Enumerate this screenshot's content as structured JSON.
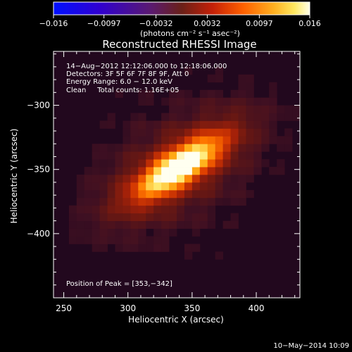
{
  "chart_data": {
    "type": "heatmap",
    "title": "Reconstructed RHESSI Image",
    "xlabel": "Heliocentric X (arcsec)",
    "ylabel": "Heliocentric Y (arcsec)",
    "xlim": [
      242,
      434
    ],
    "ylim": [
      -450,
      -258
    ],
    "x_ticks": [
      250,
      300,
      350,
      400
    ],
    "y_ticks": [
      -300,
      -350,
      -400
    ],
    "x_tick_labels": [
      "250",
      "300",
      "350",
      "400"
    ],
    "y_tick_labels": [
      "−300",
      "−350",
      "−400"
    ],
    "colorbar": {
      "range": [
        -0.016,
        0.016
      ],
      "tick_values": [
        -0.016,
        -0.0097,
        -0.0032,
        0.0032,
        0.0097,
        0.016
      ],
      "tick_labels": [
        "−0.016",
        "−0.0097",
        "−0.0032",
        "0.0032",
        "0.0097",
        "0.016"
      ],
      "units_label": "(photons cm⁻² s⁻¹ asec⁻²)",
      "colormap": "blue-purple-red-orange-yellow-white"
    },
    "annotations": [
      "14−Aug−2012 12:12:06.000 to 12:18:06.000",
      "Detectors: 3F 5F 6F 7F 8F 9F, Att 0",
      "Energy Range: 6.0 − 12.0 keV",
      "Clean     Total counts: 1.16E+05"
    ],
    "peak_label": "Position of Peak = [353,−342]",
    "peak_position": [
      353,
      -342
    ],
    "source": {
      "center": [
        340,
        -348
      ],
      "major_axis_fwhm_arcsec": 58,
      "minor_axis_fwhm_arcsec": 20,
      "position_angle_deg": 33,
      "peak_value": 0.016
    },
    "grid": false
  },
  "footer": {
    "date": "10−May−2014 10:09"
  }
}
